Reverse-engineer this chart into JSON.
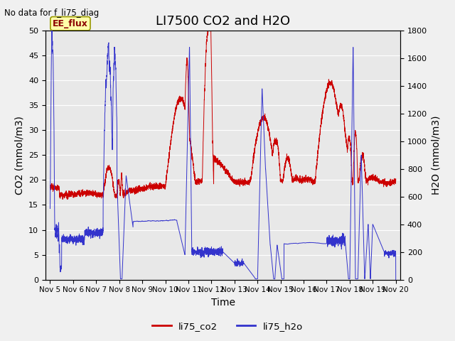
{
  "title": "LI7500 CO2 and H2O",
  "no_data_text": "No data for f_li75_diag",
  "box_label": "EE_flux",
  "xlabel": "Time",
  "ylabel_left": "CO2 (mmol/m3)",
  "ylabel_right": "H2O (mmol/m3)",
  "ylim_left": [
    0,
    50
  ],
  "ylim_right": [
    0,
    1800
  ],
  "xlim": [
    4.8,
    20.2
  ],
  "x_ticks": [
    5,
    6,
    7,
    8,
    9,
    10,
    11,
    12,
    13,
    14,
    15,
    16,
    17,
    18,
    19,
    20
  ],
  "x_tick_labels": [
    "Nov 5",
    "Nov 6",
    "Nov 7",
    "Nov 8",
    "Nov 9",
    "Nov 10",
    "Nov 11",
    "Nov 12",
    "Nov 13",
    "Nov 14",
    "Nov 15",
    "Nov 16",
    "Nov 17",
    "Nov 18",
    "Nov 19",
    "Nov 20"
  ],
  "legend_labels": [
    "li75_co2",
    "li75_h2o"
  ],
  "legend_colors": [
    "#cc0000",
    "#3333cc"
  ],
  "co2_color": "#cc0000",
  "h2o_color": "#3333cc",
  "plot_bg_color": "#e8e8e8",
  "fig_bg_color": "#f0f0f0",
  "grid_color": "#ffffff",
  "title_fontsize": 13,
  "axis_label_fontsize": 10,
  "tick_fontsize": 8,
  "yticks_left": [
    0,
    5,
    10,
    15,
    20,
    25,
    30,
    35,
    40,
    45,
    50
  ],
  "yticks_right": [
    0,
    200,
    400,
    600,
    800,
    1000,
    1200,
    1400,
    1600,
    1800
  ]
}
